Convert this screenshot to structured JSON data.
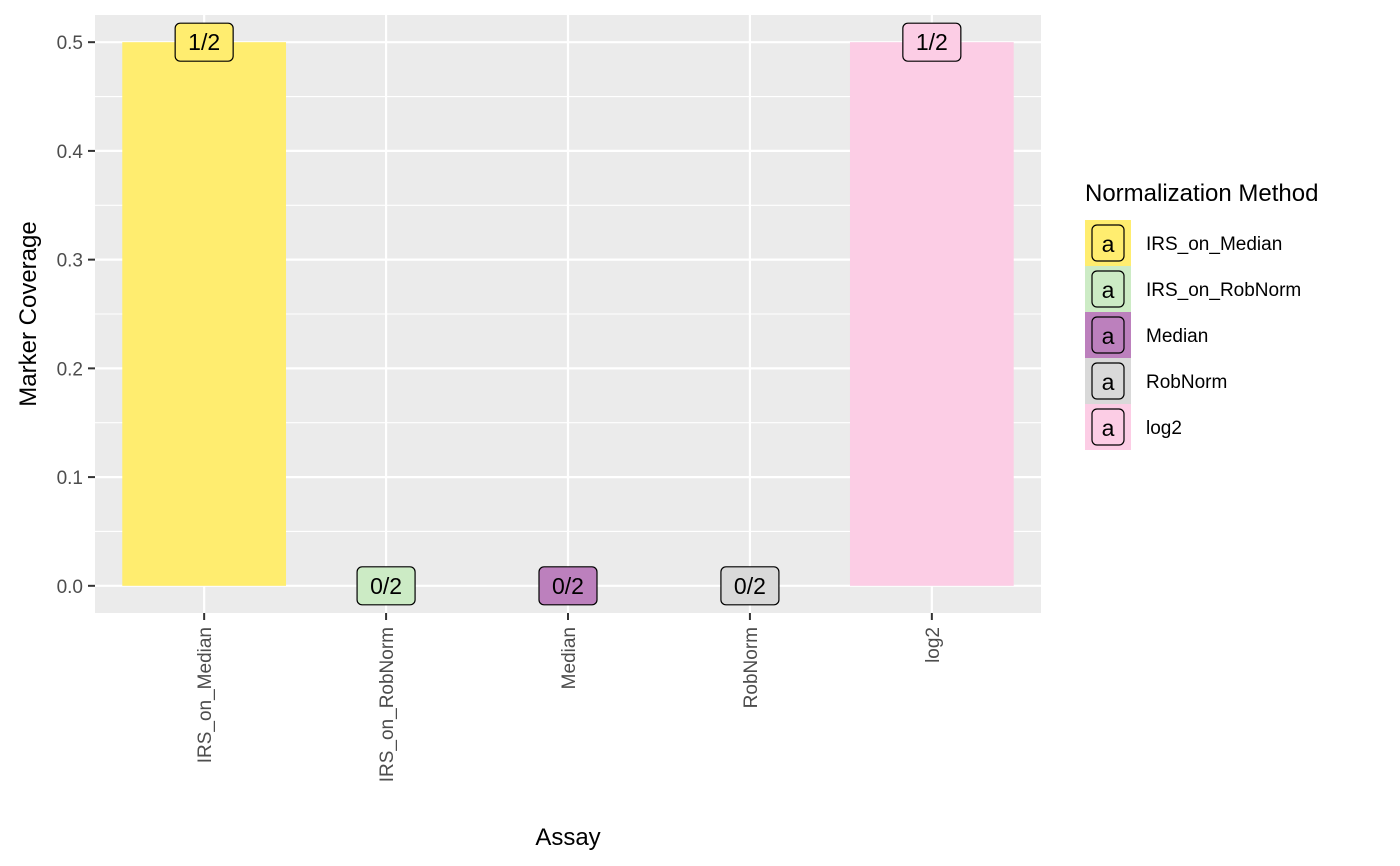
{
  "chart_data": {
    "type": "bar",
    "categories": [
      "IRS_on_Median",
      "IRS_on_RobNorm",
      "Median",
      "RobNorm",
      "log2"
    ],
    "values": [
      0.5,
      0,
      0,
      0,
      0.5
    ],
    "data_labels": [
      "1/2",
      "0/2",
      "0/2",
      "0/2",
      "1/2"
    ],
    "xlabel": "Assay",
    "ylabel": "Marker Coverage",
    "ylim": [
      -0.025,
      0.525
    ],
    "yticks": [
      0.0,
      0.1,
      0.2,
      0.3,
      0.4,
      0.5
    ],
    "ytick_labels": [
      "0.0",
      "0.1",
      "0.2",
      "0.3",
      "0.4",
      "0.5"
    ],
    "grid": true,
    "legend": {
      "title": "Normalization Method",
      "position": "right",
      "key_glyph": "a",
      "entries": [
        {
          "name": "IRS_on_Median",
          "color": "#ffed6f"
        },
        {
          "name": "IRS_on_RobNorm",
          "color": "#ccebc5"
        },
        {
          "name": "Median",
          "color": "#bc80bd"
        },
        {
          "name": "RobNorm",
          "color": "#d9d9d9"
        },
        {
          "name": "log2",
          "color": "#fccde5"
        }
      ]
    },
    "colors": [
      "#ffed6f",
      "#ccebc5",
      "#bc80bd",
      "#d9d9d9",
      "#fccde5"
    ],
    "panel_background": "#ebebeb",
    "grid_color": "#ffffff"
  }
}
